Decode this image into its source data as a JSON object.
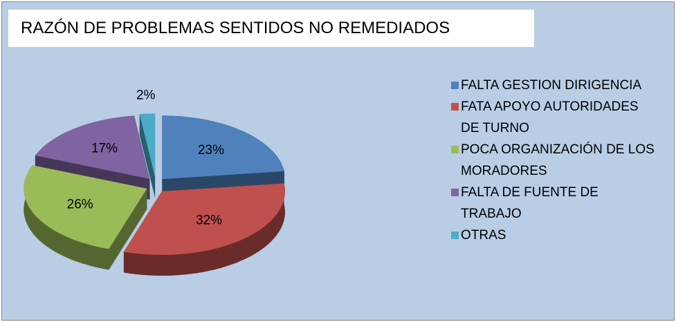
{
  "chart_data": {
    "type": "pie",
    "title": "RAZÓN  DE PROBLEMAS SENTIDOS NO REMEDIADOS",
    "categories": [
      "FALTA GESTION DIRIGENCIA",
      "FATA APOYO AUTORIDADES DE TURNO",
      "POCA ORGANIZACIÓN DE LOS MORADORES",
      "FALTA DE FUENTE DE TRABAJO",
      "OTRAS"
    ],
    "values": [
      23,
      32,
      26,
      17,
      2
    ],
    "value_labels": [
      "23%",
      "32%",
      "26%",
      "17%",
      "2%"
    ],
    "colors": [
      "#4f81bd",
      "#c0504d",
      "#9bbb59",
      "#8064a2",
      "#4bacc6"
    ],
    "legend": "right"
  }
}
